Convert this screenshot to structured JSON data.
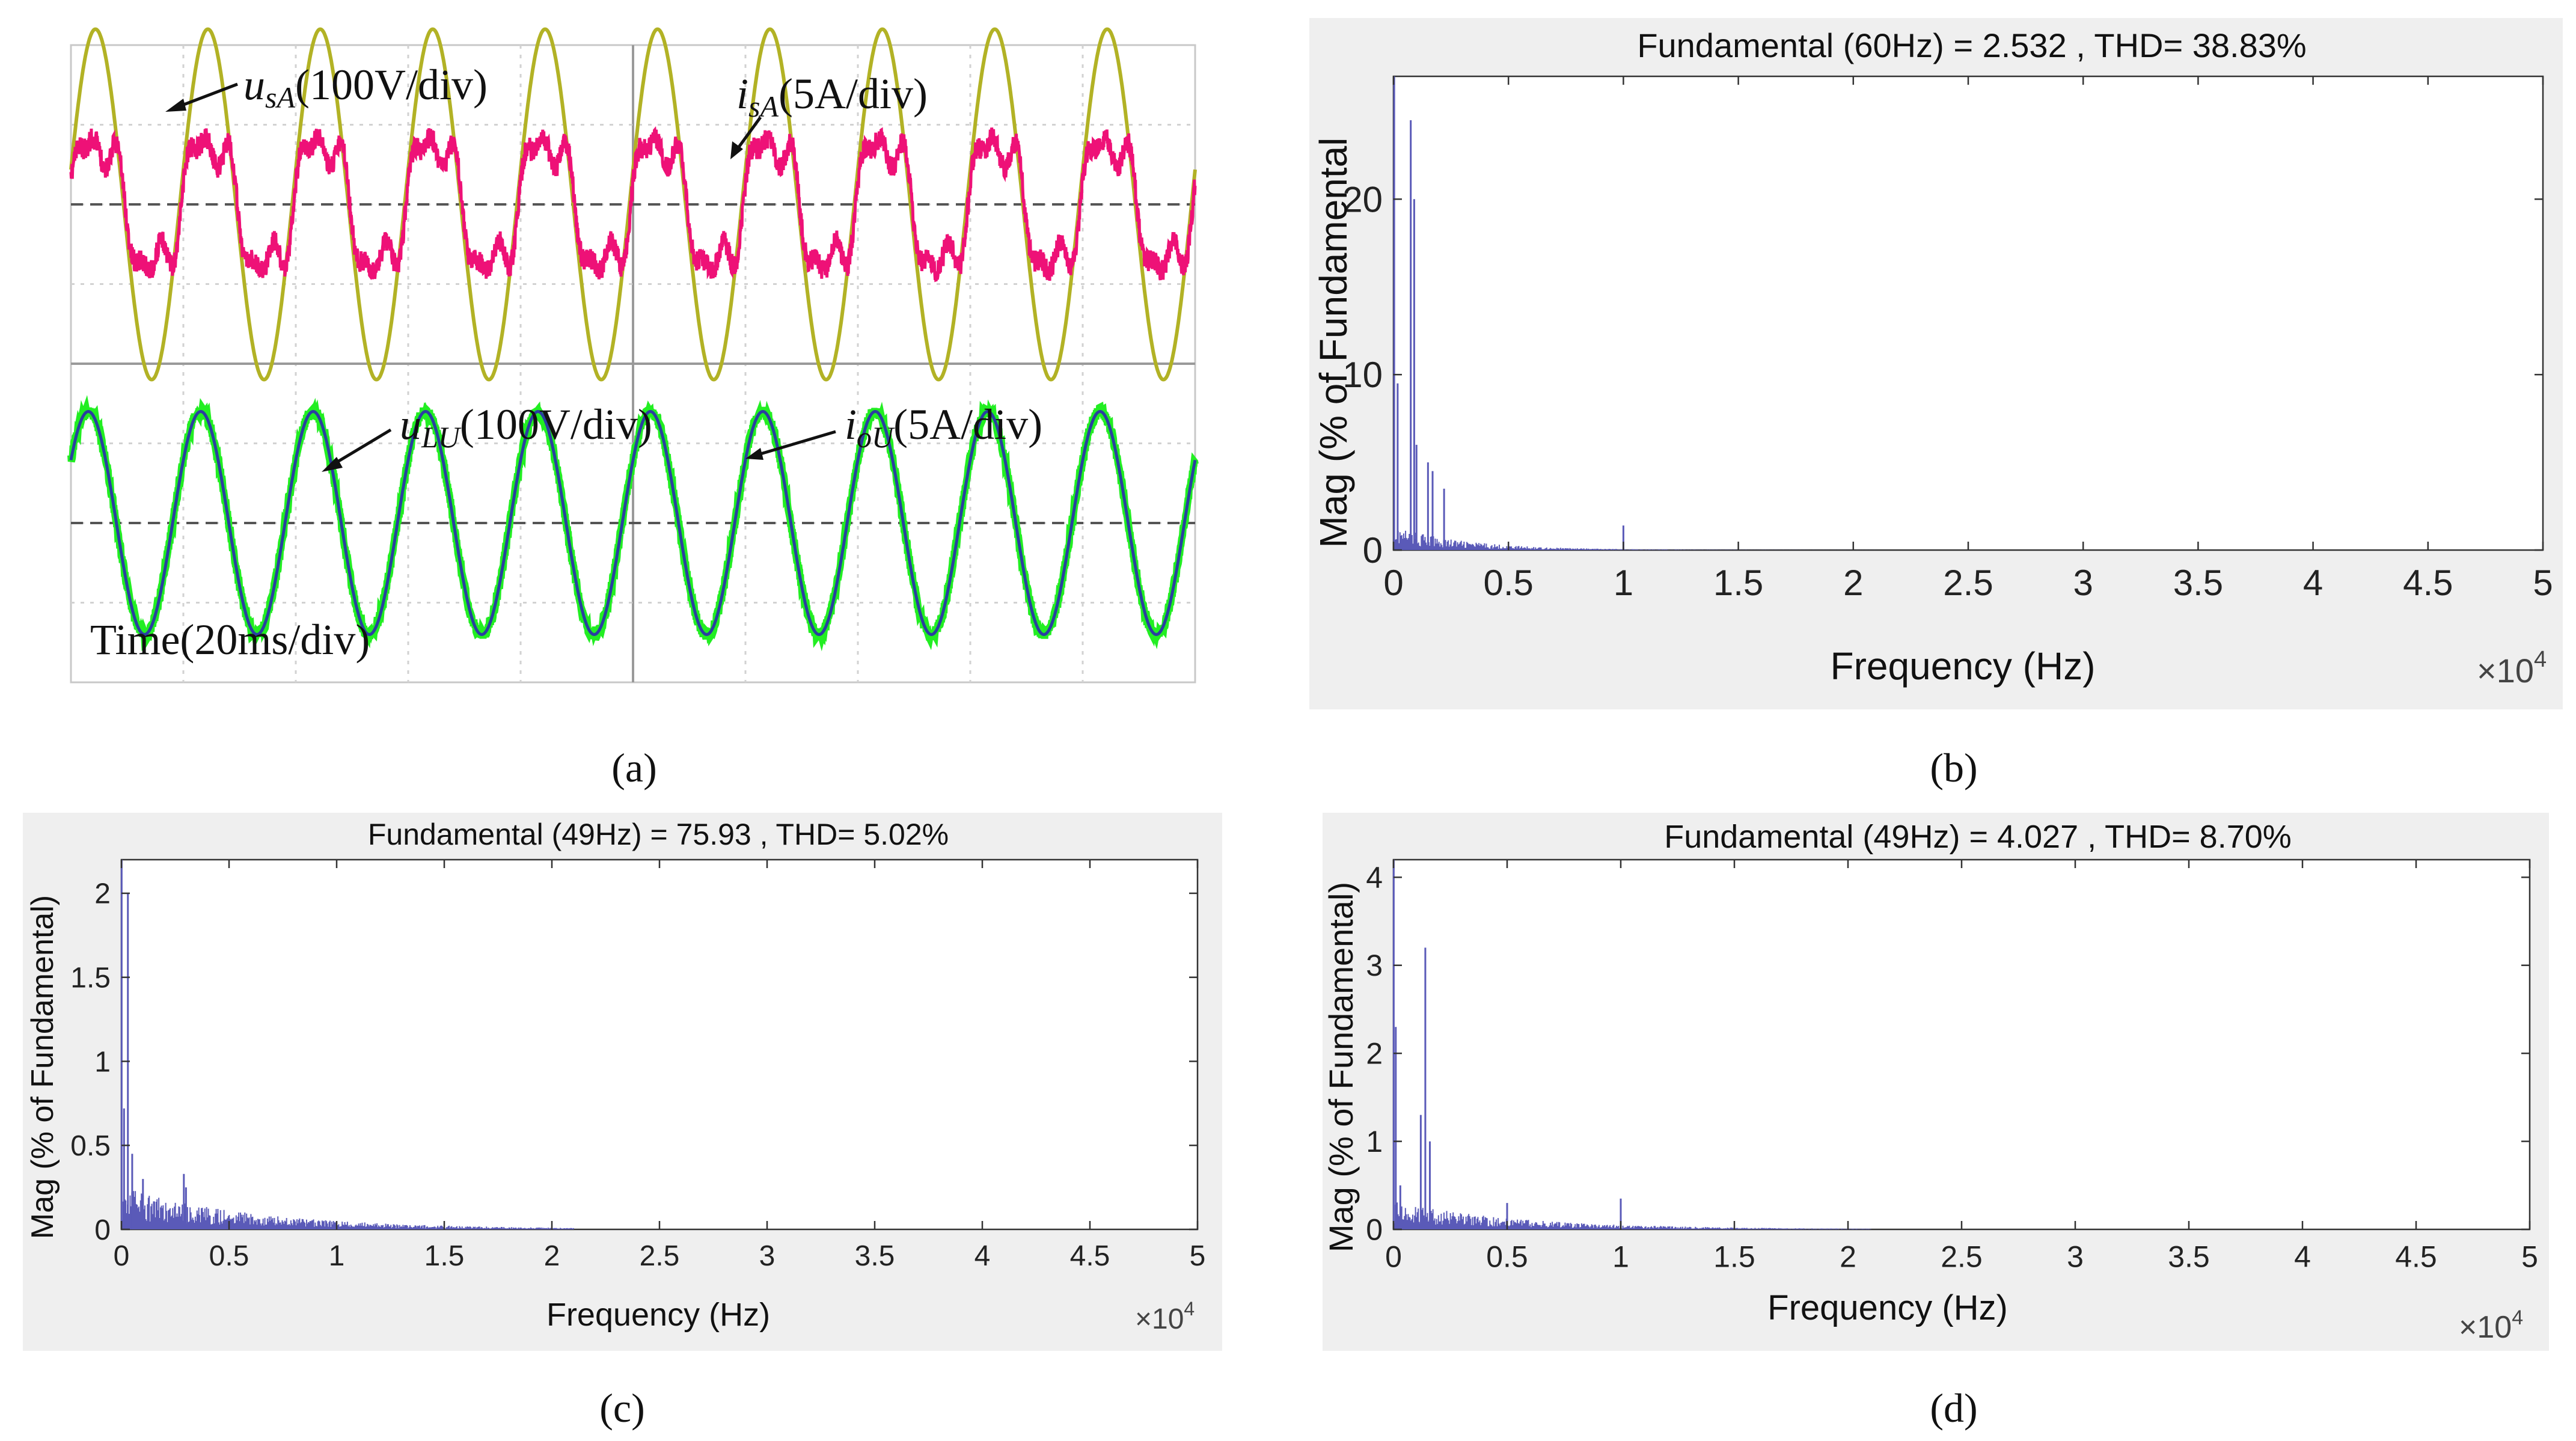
{
  "figure": {
    "panels": [
      {
        "id": "a",
        "caption": "(a)"
      },
      {
        "id": "b",
        "caption": "(b)"
      },
      {
        "id": "c",
        "caption": "(c)"
      },
      {
        "id": "d",
        "caption": "(d)"
      }
    ]
  },
  "colors": {
    "voltage_source": "#b2b225",
    "current_source": "#ee1177",
    "voltage_load": "#2a3fa0",
    "current_load": "#22ee22",
    "spectrum_bar": "#5a5ab8",
    "panel_bg": "#efefef"
  },
  "chart_data": [
    {
      "id": "a",
      "type": "line",
      "title": "",
      "time_label": "Time(20ms/div)",
      "time_div_ms": 20,
      "cycles_shown": 10,
      "series": [
        {
          "name": "u_sA",
          "label_main": "u",
          "label_sub": "sA",
          "label_scale": "(100V/div)",
          "amplitude_div": 2.2,
          "color": "voltage_source"
        },
        {
          "name": "i_sA",
          "label_main": "i",
          "label_sub": "sA",
          "label_scale": "(5A/div)",
          "amplitude_div": 1.0,
          "color": "current_source",
          "distorted": true
        },
        {
          "name": "u_LU",
          "label_main": "u",
          "label_sub": "LU",
          "label_scale": "(100V/div)",
          "amplitude_div": 1.4,
          "color": "voltage_load"
        },
        {
          "name": "i_oU",
          "label_main": "i",
          "label_sub": "oU",
          "label_scale": "(5A/div)",
          "amplitude_div": 1.4,
          "color": "current_load"
        }
      ]
    },
    {
      "id": "b",
      "type": "bar",
      "title": "Fundamental (60Hz) = 2.532 , THD= 38.83%",
      "xlabel": "Frequency (Hz)",
      "ylabel": "Mag (% of Fundamental",
      "x_multiplier": "×10",
      "x_multiplier_exp": "4",
      "xlim": [
        0,
        5
      ],
      "ylim": [
        0,
        27
      ],
      "xticks": [
        "0",
        "0.5",
        "1",
        "1.5",
        "2",
        "2.5",
        "3",
        "3.5",
        "4",
        "4.5",
        "5"
      ],
      "yticks": [
        "0",
        "10",
        "20"
      ],
      "ytick_values": [
        0,
        10,
        20
      ],
      "peaks": [
        {
          "f": 0.003,
          "mag": 27
        },
        {
          "f": 0.018,
          "mag": 9.5
        },
        {
          "f": 0.075,
          "mag": 24.5
        },
        {
          "f": 0.09,
          "mag": 20
        },
        {
          "f": 0.1,
          "mag": 6
        },
        {
          "f": 0.15,
          "mag": 5
        },
        {
          "f": 0.17,
          "mag": 4.5
        },
        {
          "f": 0.22,
          "mag": 3.5
        },
        {
          "f": 1.0,
          "mag": 1.4
        }
      ],
      "floor": {
        "level": 1.2,
        "decay_per_1e4": 3.2
      }
    },
    {
      "id": "c",
      "type": "bar",
      "title": "Fundamental (49Hz) = 75.93 , THD= 5.02%",
      "xlabel": "Frequency (Hz)",
      "ylabel": "Mag (% of Fundamental)",
      "x_multiplier": "×10",
      "x_multiplier_exp": "4",
      "xlim": [
        0,
        5
      ],
      "ylim": [
        0,
        2.2
      ],
      "xticks": [
        "0",
        "0.5",
        "1",
        "1.5",
        "2",
        "2.5",
        "3",
        "3.5",
        "4",
        "4.5",
        "5"
      ],
      "yticks": [
        "0",
        "0.5",
        "1",
        "1.5",
        "2"
      ],
      "ytick_values": [
        0,
        0.5,
        1,
        1.5,
        2
      ],
      "peaks": [
        {
          "f": 0.001,
          "mag": 2.2
        },
        {
          "f": 0.03,
          "mag": 2.0
        },
        {
          "f": 0.012,
          "mag": 0.72
        },
        {
          "f": 0.05,
          "mag": 0.45
        },
        {
          "f": 0.1,
          "mag": 0.3
        },
        {
          "f": 0.29,
          "mag": 0.33
        },
        {
          "f": 0.3,
          "mag": 0.25
        }
      ],
      "floor": {
        "level": 0.22,
        "decay_per_1e4": 1.6
      }
    },
    {
      "id": "d",
      "type": "bar",
      "title": "Fundamental (49Hz) = 4.027 , THD= 8.70%",
      "xlabel": "Frequency (Hz)",
      "ylabel": "Mag (% of Fundamental)",
      "x_multiplier": "×10",
      "x_multiplier_exp": "4",
      "xlim": [
        0,
        5
      ],
      "ylim": [
        0,
        4.2
      ],
      "xticks": [
        "0",
        "0.5",
        "1",
        "1.5",
        "2",
        "2.5",
        "3",
        "3.5",
        "4",
        "4.5",
        "5"
      ],
      "yticks": [
        "0",
        "1",
        "2",
        "3",
        "4"
      ],
      "ytick_values": [
        0,
        1,
        2,
        3,
        4
      ],
      "peaks": [
        {
          "f": 0.001,
          "mag": 4.2
        },
        {
          "f": 0.01,
          "mag": 2.3
        },
        {
          "f": 0.03,
          "mag": 0.5
        },
        {
          "f": 0.14,
          "mag": 3.2
        },
        {
          "f": 0.12,
          "mag": 1.3
        },
        {
          "f": 0.16,
          "mag": 1.0
        },
        {
          "f": 0.5,
          "mag": 0.3
        },
        {
          "f": 1.0,
          "mag": 0.35
        }
      ],
      "floor": {
        "level": 0.28,
        "decay_per_1e4": 1.8
      }
    }
  ]
}
